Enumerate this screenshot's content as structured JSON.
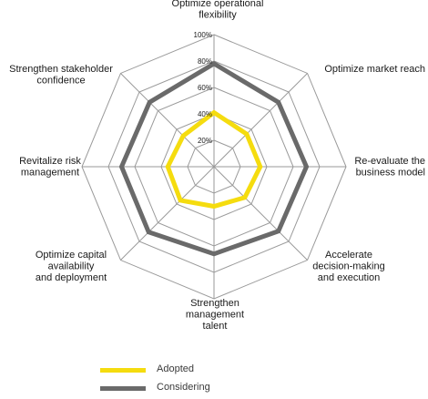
{
  "chart_data": {
    "type": "radar",
    "axes": [
      [
        "Optimize operational",
        "flexibility"
      ],
      [
        "Optimize market reach"
      ],
      [
        "Re-evaluate the",
        "business model"
      ],
      [
        "Accelerate",
        "decision-making",
        "and execution"
      ],
      [
        "Strengthen",
        "management",
        "talent"
      ],
      [
        "Optimize capital",
        "availability",
        "and deployment"
      ],
      [
        "Revitalize risk",
        "management"
      ],
      [
        "Strengthen stakeholder",
        "confidence"
      ]
    ],
    "ticks": [
      0,
      20,
      40,
      60,
      80,
      100
    ],
    "tick_labels": [
      "",
      "20%",
      "40%",
      "60%",
      "80%",
      "100%"
    ],
    "range": [
      0,
      100
    ],
    "series": [
      {
        "name": "Adopted",
        "color": "#f5dc0f",
        "values": [
          41,
          35,
          35,
          33,
          30,
          36,
          35,
          33
        ]
      },
      {
        "name": "Considering",
        "color": "#6a6a6a",
        "values": [
          78,
          69,
          70,
          69,
          66,
          70,
          70,
          69
        ]
      }
    ],
    "grid_color": "#9a9a9a"
  }
}
